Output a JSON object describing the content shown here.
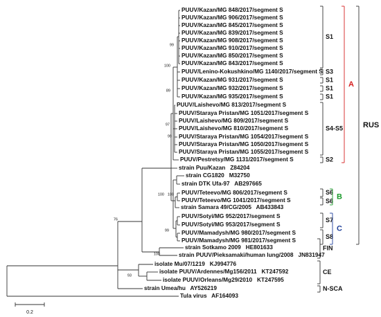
{
  "leaves": [
    "PUUV/Kazan/MG 848/2017/segment S",
    "PUUV/Kazan/MG 906/2017/segment S",
    "PUUV/Kazan/MG 845/2017/segment S",
    "PUUV/Kazan/MG 839/2017/segment S",
    "PUUV/Kazan/MG 908/2017/segment S",
    "PUUV/Kazan/MG 910/2017/segment S",
    "PUUV/Kazan/MG 850/2017/segment S",
    "PUUV/Kazan/MG 843/2017/segment S",
    "PUUV/Lenino-Kokushkino/MG 1140/2017/segment S",
    "PUUV/Kazan/MG 931/2017/segment S",
    "PUUV/Kazan/MG 932/2017/segment S",
    "PUUV/Kazan/MG 935/2017/segment S",
    "PUUV/Laishevo/MG 813/2017/segment S",
    "PUUV/Staraya Pristan/MG 1051/2017/segment S",
    "PUUV/Laishevo/MG 809/2017/segment S",
    "PUUV/Laishevo/MG 810/2017/segment S",
    "PUUV/Staraya Pristan/MG 1054/2017/segment S",
    "PUUV/Staraya Pristan/MG 1050/2017/segment S",
    "PUUV/Staraya Pristan/MG 1055/2017/segment S",
    "PUUV/Pestretsy/MG 1131/2017/segment S",
    "strain Puu/Kazan   Z84204",
    "strain CG1820   M32750",
    "strain DTK Ufa-97   AB297665",
    "PUUV/Teteevo/MG 806/2017/segment S",
    "PUUV/Teteevo/MG 1041/2017/segment S",
    "strain Samara 49/CG/2005   AB433843",
    "PUUV/Sotyi/MG 952/2017/segment S",
    "PUUV/Sotyi/MG 953/2017/segment S",
    "PUUV/Mamadysh/MG 980/2017/segment S",
    "PUUV/Mamadysh/MG 981/2017/segment S",
    "strain Sotkamo 2009   HE801633",
    "strain PUUV/Pieksamaki/human lung/2008   JN831947",
    "isolate Mu/07/1219   KJ994776",
    "isolate PUUV/Ardennes/Mg156/2011   KT247592",
    "isolate PUUV/Orleans/Mg29/2010   KT247595",
    "strain Umea/hu   AY526219",
    "Tula virus   AF164093"
  ],
  "bootstrap": [
    99,
    100,
    89,
    97,
    99,
    100,
    100,
    99,
    76,
    93,
    100
  ],
  "clades": [
    "S1",
    "S3",
    "S1",
    "S1",
    "S1",
    "S4-S5",
    "S2",
    "S6",
    "S6",
    "S7",
    "S8",
    "FIN",
    "CE",
    "N-SCA"
  ],
  "groups": [
    {
      "label": "A",
      "color": "#d62020"
    },
    {
      "label": "B",
      "color": "#1a9a2a"
    },
    {
      "label": "C",
      "color": "#1f3f9a"
    }
  ],
  "superclade": "RUS",
  "scale": "0.2"
}
